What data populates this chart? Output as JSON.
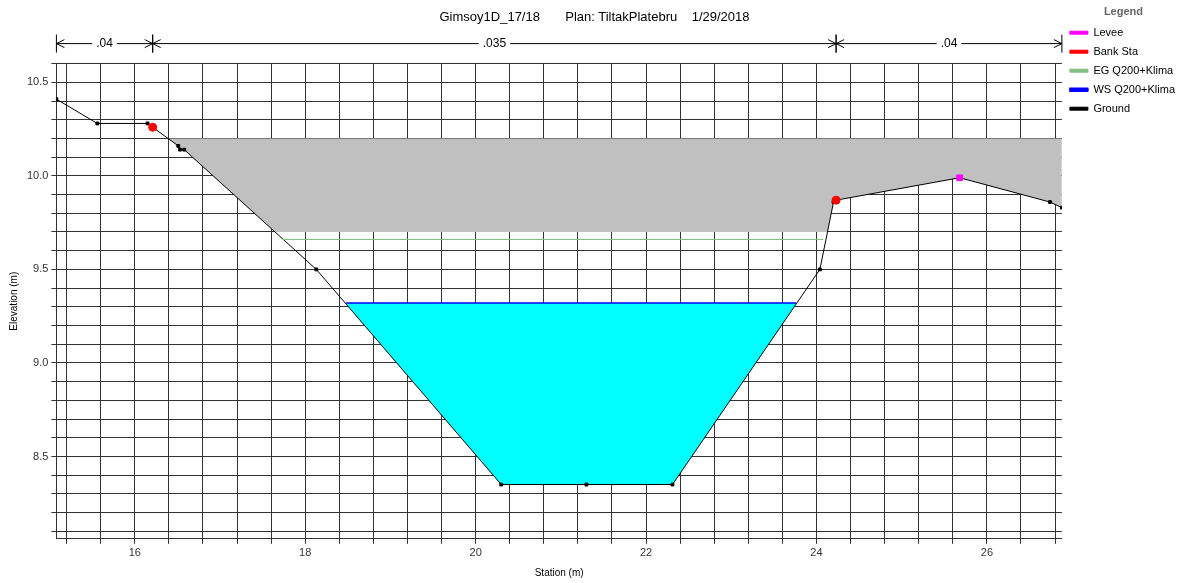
{
  "chart_data": {
    "type": "line",
    "title": "Gimsoy1D_17/18       Plan: TiltakPlatebru    1/29/2018",
    "xlabel": "Station (m)",
    "ylabel": "Elevation (m)",
    "legend_title": "Legend",
    "legend": "top right",
    "grid": true,
    "xlim": [
      15.08,
      26.88
    ],
    "ylim": [
      8.06,
      10.6
    ],
    "xticks": [
      {
        "value": 15.2,
        "label": null
      },
      {
        "value": 15.6,
        "label": null
      },
      16,
      {
        "value": 16.4,
        "label": null
      },
      {
        "value": 16.8,
        "label": null
      },
      {
        "value": 17.2,
        "label": null
      },
      {
        "value": 17.6,
        "label": null
      },
      18,
      {
        "value": 18.4,
        "label": null
      },
      {
        "value": 18.8,
        "label": null
      },
      {
        "value": 19.2,
        "label": null
      },
      {
        "value": 19.6,
        "label": null
      },
      20,
      {
        "value": 20.4,
        "label": null
      },
      {
        "value": 20.8,
        "label": null
      },
      {
        "value": 21.2,
        "label": null
      },
      {
        "value": 21.6,
        "label": null
      },
      22,
      {
        "value": 22.4,
        "label": null
      },
      {
        "value": 22.8,
        "label": null
      },
      {
        "value": 23.2,
        "label": null
      },
      {
        "value": 23.6,
        "label": null
      },
      24,
      {
        "value": 24.4,
        "label": null
      },
      {
        "value": 24.8,
        "label": null
      },
      {
        "value": 25.2,
        "label": null
      },
      {
        "value": 25.6,
        "label": null
      },
      26,
      {
        "value": 26.4,
        "label": null
      },
      {
        "value": 26.8,
        "label": null
      }
    ],
    "yticks": [
      {
        "value": 8.1,
        "label": null
      },
      {
        "value": 8.2,
        "label": null
      },
      {
        "value": 8.3,
        "label": null
      },
      {
        "value": 8.4,
        "label": null
      },
      8.5,
      {
        "value": 8.6,
        "label": null
      },
      {
        "value": 8.7,
        "label": null
      },
      {
        "value": 8.8,
        "label": null
      },
      {
        "value": 8.9,
        "label": null
      },
      {
        "value": 9,
        "label": "9.0"
      },
      {
        "value": 9.1,
        "label": null
      },
      {
        "value": 9.2,
        "label": null
      },
      {
        "value": 9.3,
        "label": null
      },
      {
        "value": 9.4,
        "label": null
      },
      9.5,
      {
        "value": 9.6,
        "label": null
      },
      {
        "value": 9.7,
        "label": null
      },
      {
        "value": 9.8,
        "label": null
      },
      {
        "value": 9.9,
        "label": null
      },
      {
        "value": 10,
        "label": "10.0"
      },
      {
        "value": 10.1,
        "label": null
      },
      {
        "value": 10.2,
        "label": null
      },
      {
        "value": 10.3,
        "label": null
      },
      {
        "value": 10.4,
        "label": null
      },
      10.5,
      {
        "value": 10.6,
        "label": null
      }
    ],
    "series": [
      {
        "name": "EG Q200+Klima",
        "type": "line",
        "color": "#80c080",
        "marker": "none",
        "x": [
          17.74,
          24.08
        ],
        "values": [
          9.66,
          9.66
        ]
      },
      {
        "name": "WS Q200+Klima",
        "type": "area",
        "color": "#0000ff",
        "marker": "none",
        "x": [
          18.48,
          23.76
        ],
        "values": [
          9.32,
          9.32
        ]
      },
      {
        "name": "Ground",
        "type": "line",
        "color": "#000000",
        "marker": "square",
        "x": [
          15.08,
          15.56,
          16.15,
          16.21,
          16.51,
          16.53,
          16.58,
          18.13,
          20.3,
          21.3,
          22.31,
          24.04,
          24.2,
          24.23,
          25.68,
          26.74,
          26.88
        ],
        "values": [
          10.41,
          10.28,
          10.28,
          10.26,
          10.16,
          10.14,
          10.14,
          9.5,
          8.35,
          8.35,
          8.35,
          9.5,
          9.86,
          9.87,
          9.99,
          9.86,
          9.83
        ]
      },
      {
        "name": "Levee",
        "type": "scatter",
        "color": "#ff00ff",
        "marker": "square",
        "x": [
          25.68
        ],
        "values": [
          9.99
        ]
      },
      {
        "name": "Bank Sta",
        "type": "scatter",
        "color": "#ff0000",
        "marker": "circle",
        "x": [
          16.21,
          24.23
        ],
        "values": [
          10.26,
          9.87
        ]
      }
    ],
    "bands": [
      {
        "axis": "y",
        "from": 9.7,
        "to": 10.2,
        "color": "#c0c0c0"
      }
    ],
    "annotations": [
      ".04",
      ".035",
      ".04"
    ]
  }
}
